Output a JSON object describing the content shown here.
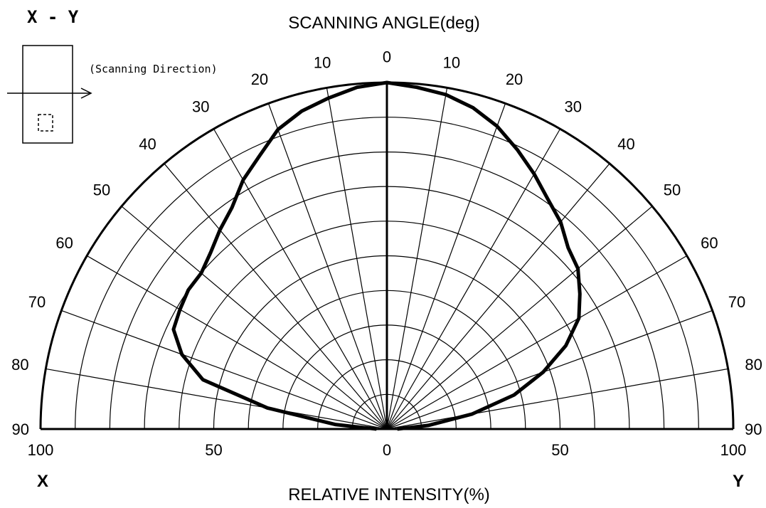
{
  "chart_data": {
    "type": "polar",
    "title": "SCANNING ANGLE(deg)",
    "xlabel": "RELATIVE INTENSITY(%)",
    "corner_title": "X - Y",
    "inset_label": "(Scanning Direction)",
    "left_axis_label": "X",
    "right_axis_label": "Y",
    "angle_range": [
      -90,
      90
    ],
    "radius_range": [
      0,
      100
    ],
    "angle_tick_labels": [
      "0",
      "10",
      "20",
      "30",
      "40",
      "50",
      "60",
      "70",
      "80",
      "90"
    ],
    "radial_tick_labels": [
      "100",
      "50",
      "0",
      "50",
      "100"
    ],
    "grid": true,
    "series": [
      {
        "angles": [
          -90,
          -85,
          -80,
          -75,
          -70,
          -65,
          -60,
          -55,
          -50,
          -45,
          -40,
          -35,
          -30,
          -25,
          -20,
          -15,
          -10,
          -5,
          0,
          5,
          10,
          15,
          20,
          25,
          30,
          35,
          40,
          45,
          50,
          55,
          60,
          65,
          70,
          75,
          80,
          85,
          90
        ],
        "left": [
          3,
          15,
          35,
          55,
          63,
          68,
          69,
          70,
          70,
          72,
          75,
          78,
          83,
          87,
          92,
          95,
          97,
          99,
          100
        ],
        "right": [
          100,
          99,
          98,
          96,
          93,
          89,
          85,
          81,
          78,
          74,
          72,
          68,
          64,
          57,
          48,
          38,
          25,
          12,
          3
        ]
      }
    ]
  }
}
